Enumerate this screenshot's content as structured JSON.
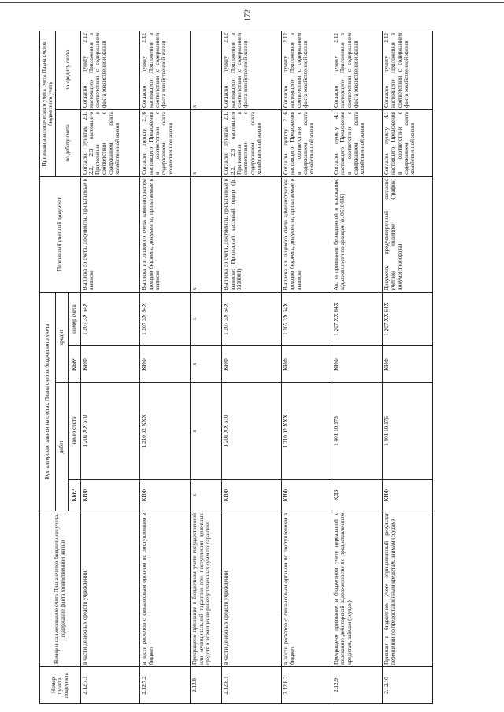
{
  "page_number": "172",
  "table": {
    "header": {
      "item_number": "Номер пункта, подпункта",
      "account": "Номер и наименование счета Плана счетов бюджетного учета, содержание факта хозяйственной жизни",
      "entries": "Бухгалтерские записи на счетах Плана счетов бюджетного учета",
      "debit": "дебет",
      "credit": "кредит",
      "debit_kbk": "КБК¹",
      "debit_account": "номер счета",
      "credit_kbk": "КБК¹",
      "credit_account": "номер счета",
      "document": "Первичный учетный документ",
      "analytics": "Признаки аналитического учета счета Плана счетов бюджетного учета",
      "analytics_debit": "по дебету счета",
      "analytics_credit": "по кредиту счета"
    },
    "rows": [
      [
        "2.12.7.1",
        "в части денежных средств учреждений;",
        "КИФ",
        "1 201 XX 510",
        "КИФ",
        "1 207 3X 64X",
        "Выписка со счета, документы, прилагаемые к выписке",
        "Согласно пунктам 2.1, 2.2, 2.3 настоящего Приложения в соответствии с содержанием факта хозяйственной жизни",
        "Согласно пункту 2.12 настоящего Приложения в соответствии с содержанием факта хозяйственной жизни"
      ],
      [
        "2.12.7.2",
        "в части расчетов с финансовым органом по поступлениям в бюджет",
        "КИФ",
        "1 210 02 XXX",
        "КИФ",
        "1 207 3X 64X",
        "Выписка из лицевого счета администратора доходов бюджета, документы, прилагаемые к выписке",
        "Согласно пункту 2.16 настоящего Приложения в соответствии с содержанием факта хозяйственной жизни",
        "Согласно пункту 2.12 настоящего Приложения в соответствии с содержанием факта хозяйственной жизни"
      ],
      [
        "2.12.8",
        "Прекращено признание в бюджетном учете государственной или муниципальной гарантии при поступлении денежных средств в возмещение ранее уплаченных сумм по гарантии:",
        "x",
        "x",
        "x",
        "x",
        "x",
        "x",
        "x"
      ],
      [
        "2.12.8.1",
        "в части денежных средств учреждений;",
        "КИФ",
        "1 201 XX 510",
        "КИФ",
        "1 207 3X 64X",
        "Выписка со счета, документы, прилагаемые к выписке; Приходный кассовый ордер (ф. 0310001)",
        "Согласно пунктам 2.1, 2.2, 2.3 настоящего Приложения в соответствии с содержанием факта хозяйственной жизни",
        "Согласно пункту 2.12 настоящего Приложения в соответствии с содержанием факта хозяйственной жизни"
      ],
      [
        "2.12.8.2",
        "в части расчетов с финансовым органом по поступлениям в бюджет",
        "КИФ",
        "1 210 02 XXX",
        "КИФ",
        "1 207 3X 64X",
        "Выписка из лицевого счета администратора доходов бюджета, документы, прилагаемые к выписке",
        "Согласно пункту 2.16 настоящего Приложения в соответствии с содержанием факта хозяйственной жизни",
        "Согласно пункту 2.12 настоящего Приложения в соответствии с содержанием факта хозяйственной жизни"
      ],
      [
        "2.12.9",
        "Прекращено признание в бюджетном учете нереальной к взысканию дебиторской задолженности по предоставленным кредитам, займам (ссудам)",
        "КДБ",
        "1 401 10 173",
        "КИФ",
        "1 207 XX 64X",
        "Акт о признании безнадежной к взысканию задолженности по доходам (ф. 0510436)",
        "Согласно пункту 4.1 настоящего Приложения в соответствии с содержанием факта хозяйственной жизни",
        "Согласно пункту 2.12 настоящего Приложения в соответствии с содержанием факта хозяйственной жизни"
      ],
      [
        "2.12.10",
        "Признан в бюджетном учете отрицательный результат переоценки по предоставленным кредитам, займам (ссудам)",
        "КИФ",
        "1 401 10 176",
        "КИФ",
        "1 207 XX 64X",
        "Документ, предусмотренный согласно учетной политике (график) документооборота)",
        "Согласно пункту 4.1 настоящего Приложения в соответствии с содержанием факта хозяйственной жизни",
        "Согласно пункту 2.12 настоящего Приложения в соответствии с содержанием факта хозяйственной жизни"
      ]
    ]
  }
}
